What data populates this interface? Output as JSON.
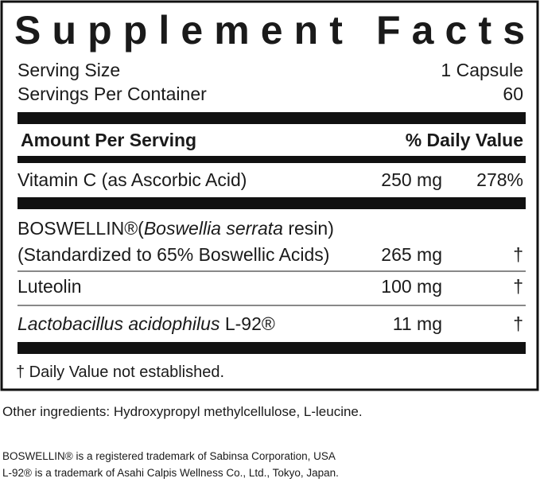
{
  "header": {
    "title": "Supplement Facts"
  },
  "serving": [
    {
      "label": "Serving Size",
      "value": "1 Capsule"
    },
    {
      "label": "Servings Per Container",
      "value": "60"
    }
  ],
  "table": {
    "header": {
      "amount": "Amount Per Serving",
      "daily_value": "% Daily Value"
    },
    "rows": [
      {
        "name": [
          {
            "text": "Vitamin C (as Ascorbic Acid)",
            "italic": false
          }
        ],
        "amount": "250 mg",
        "daily_value": "278%"
      },
      {
        "name": [
          {
            "text": "BOSWELLIN®(",
            "italic": false
          },
          {
            "text": "Boswellia serrata",
            "italic": true
          },
          {
            "text": " resin)",
            "italic": false
          }
        ],
        "detail": "(Standardized to 65% Boswellic Acids)",
        "amount": "265 mg",
        "daily_value": "†"
      },
      {
        "name": [
          {
            "text": "Luteolin",
            "italic": false
          }
        ],
        "amount": "100 mg",
        "daily_value": "†"
      },
      {
        "name": [
          {
            "text": "Lactobacillus acidophilus",
            "italic": true
          },
          {
            "text": " L-92®",
            "italic": false
          }
        ],
        "amount": "11 mg",
        "daily_value": "†"
      }
    ]
  },
  "footnote": "† Daily Value not established.",
  "other_ingredients": "Other ingredients: Hydroxypropyl methylcellulose, L-leucine.",
  "trademarks": [
    "BOSWELLIN® is a registered trademark of Sabinsa Corporation, USA",
    "L-92® is a trademark of Asahi Calpis Wellness Co., Ltd., Tokyo, Japan."
  ]
}
